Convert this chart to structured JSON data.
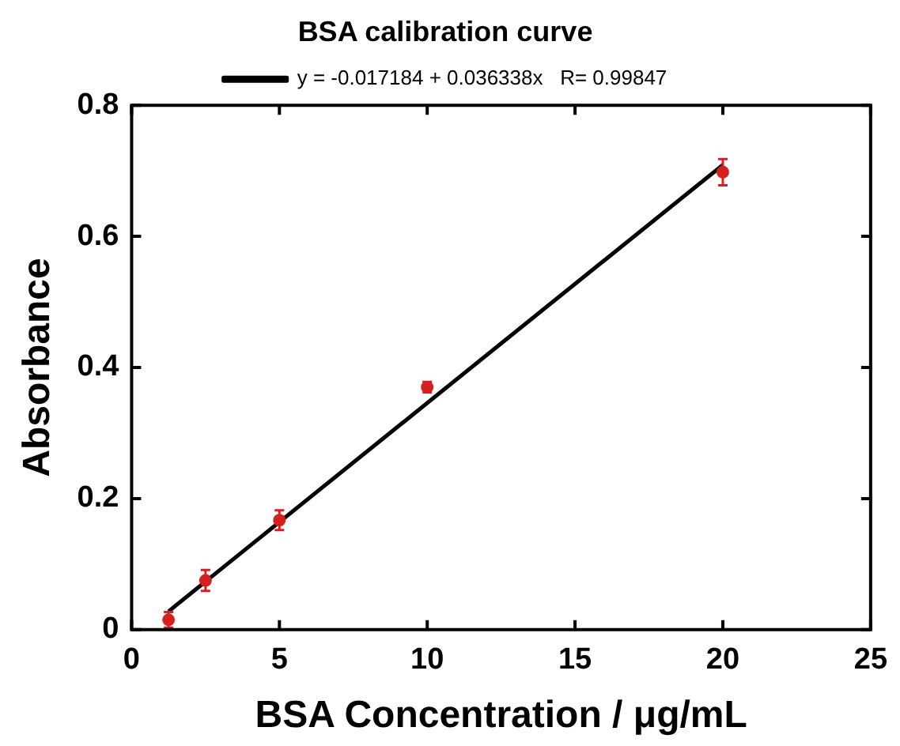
{
  "chart_data": {
    "type": "scatter",
    "title": "BSA calibration curve",
    "xlabel": "BSA Concentration / μg/mL",
    "ylabel": "Absorbance",
    "xlim": [
      0,
      25
    ],
    "xticks": [
      0,
      5,
      10,
      15,
      20,
      25
    ],
    "ylim": [
      0,
      0.8
    ],
    "yticks": [
      0,
      0.2,
      0.4,
      0.6,
      0.8
    ],
    "grid": false,
    "legend": "top",
    "series": [
      {
        "color": "#d62020",
        "marker": "circle",
        "x": [
          1.25,
          2.5,
          5,
          10,
          20
        ],
        "values": [
          0.015,
          0.075,
          0.167,
          0.37,
          0.698
        ],
        "errors": [
          0.012,
          0.016,
          0.015,
          0.008,
          0.02
        ]
      },
      {
        "type": "line",
        "marker": "none",
        "name": "y = -0.017184 + 0.036338x   R= 0.99847",
        "color": "#000000",
        "x": [
          1.25,
          20
        ],
        "values": [
          0.028,
          0.709
        ],
        "line_style": "solid"
      }
    ]
  }
}
